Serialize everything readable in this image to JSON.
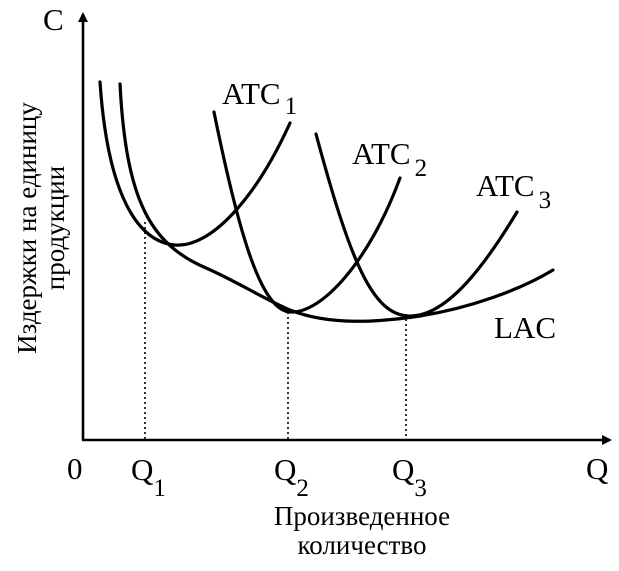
{
  "axes": {
    "y_symbol": "C",
    "x_symbol": "Q",
    "origin": "0",
    "y_title_line1": "Издержки на единицу",
    "y_title_line2": "продукции",
    "x_title_line1": "Произведенное",
    "x_title_line2": "количество"
  },
  "quantities": [
    {
      "base": "Q",
      "sub": "1"
    },
    {
      "base": "Q",
      "sub": "2"
    },
    {
      "base": "Q",
      "sub": "3"
    }
  ],
  "short_run_curves": [
    {
      "base": "ATC",
      "sub": "1"
    },
    {
      "base": "ATC",
      "sub": "2"
    },
    {
      "base": "ATC",
      "sub": "3"
    }
  ],
  "long_run_curve": "LAC",
  "colors": {
    "ink": "#000000",
    "background": "#ffffff"
  }
}
